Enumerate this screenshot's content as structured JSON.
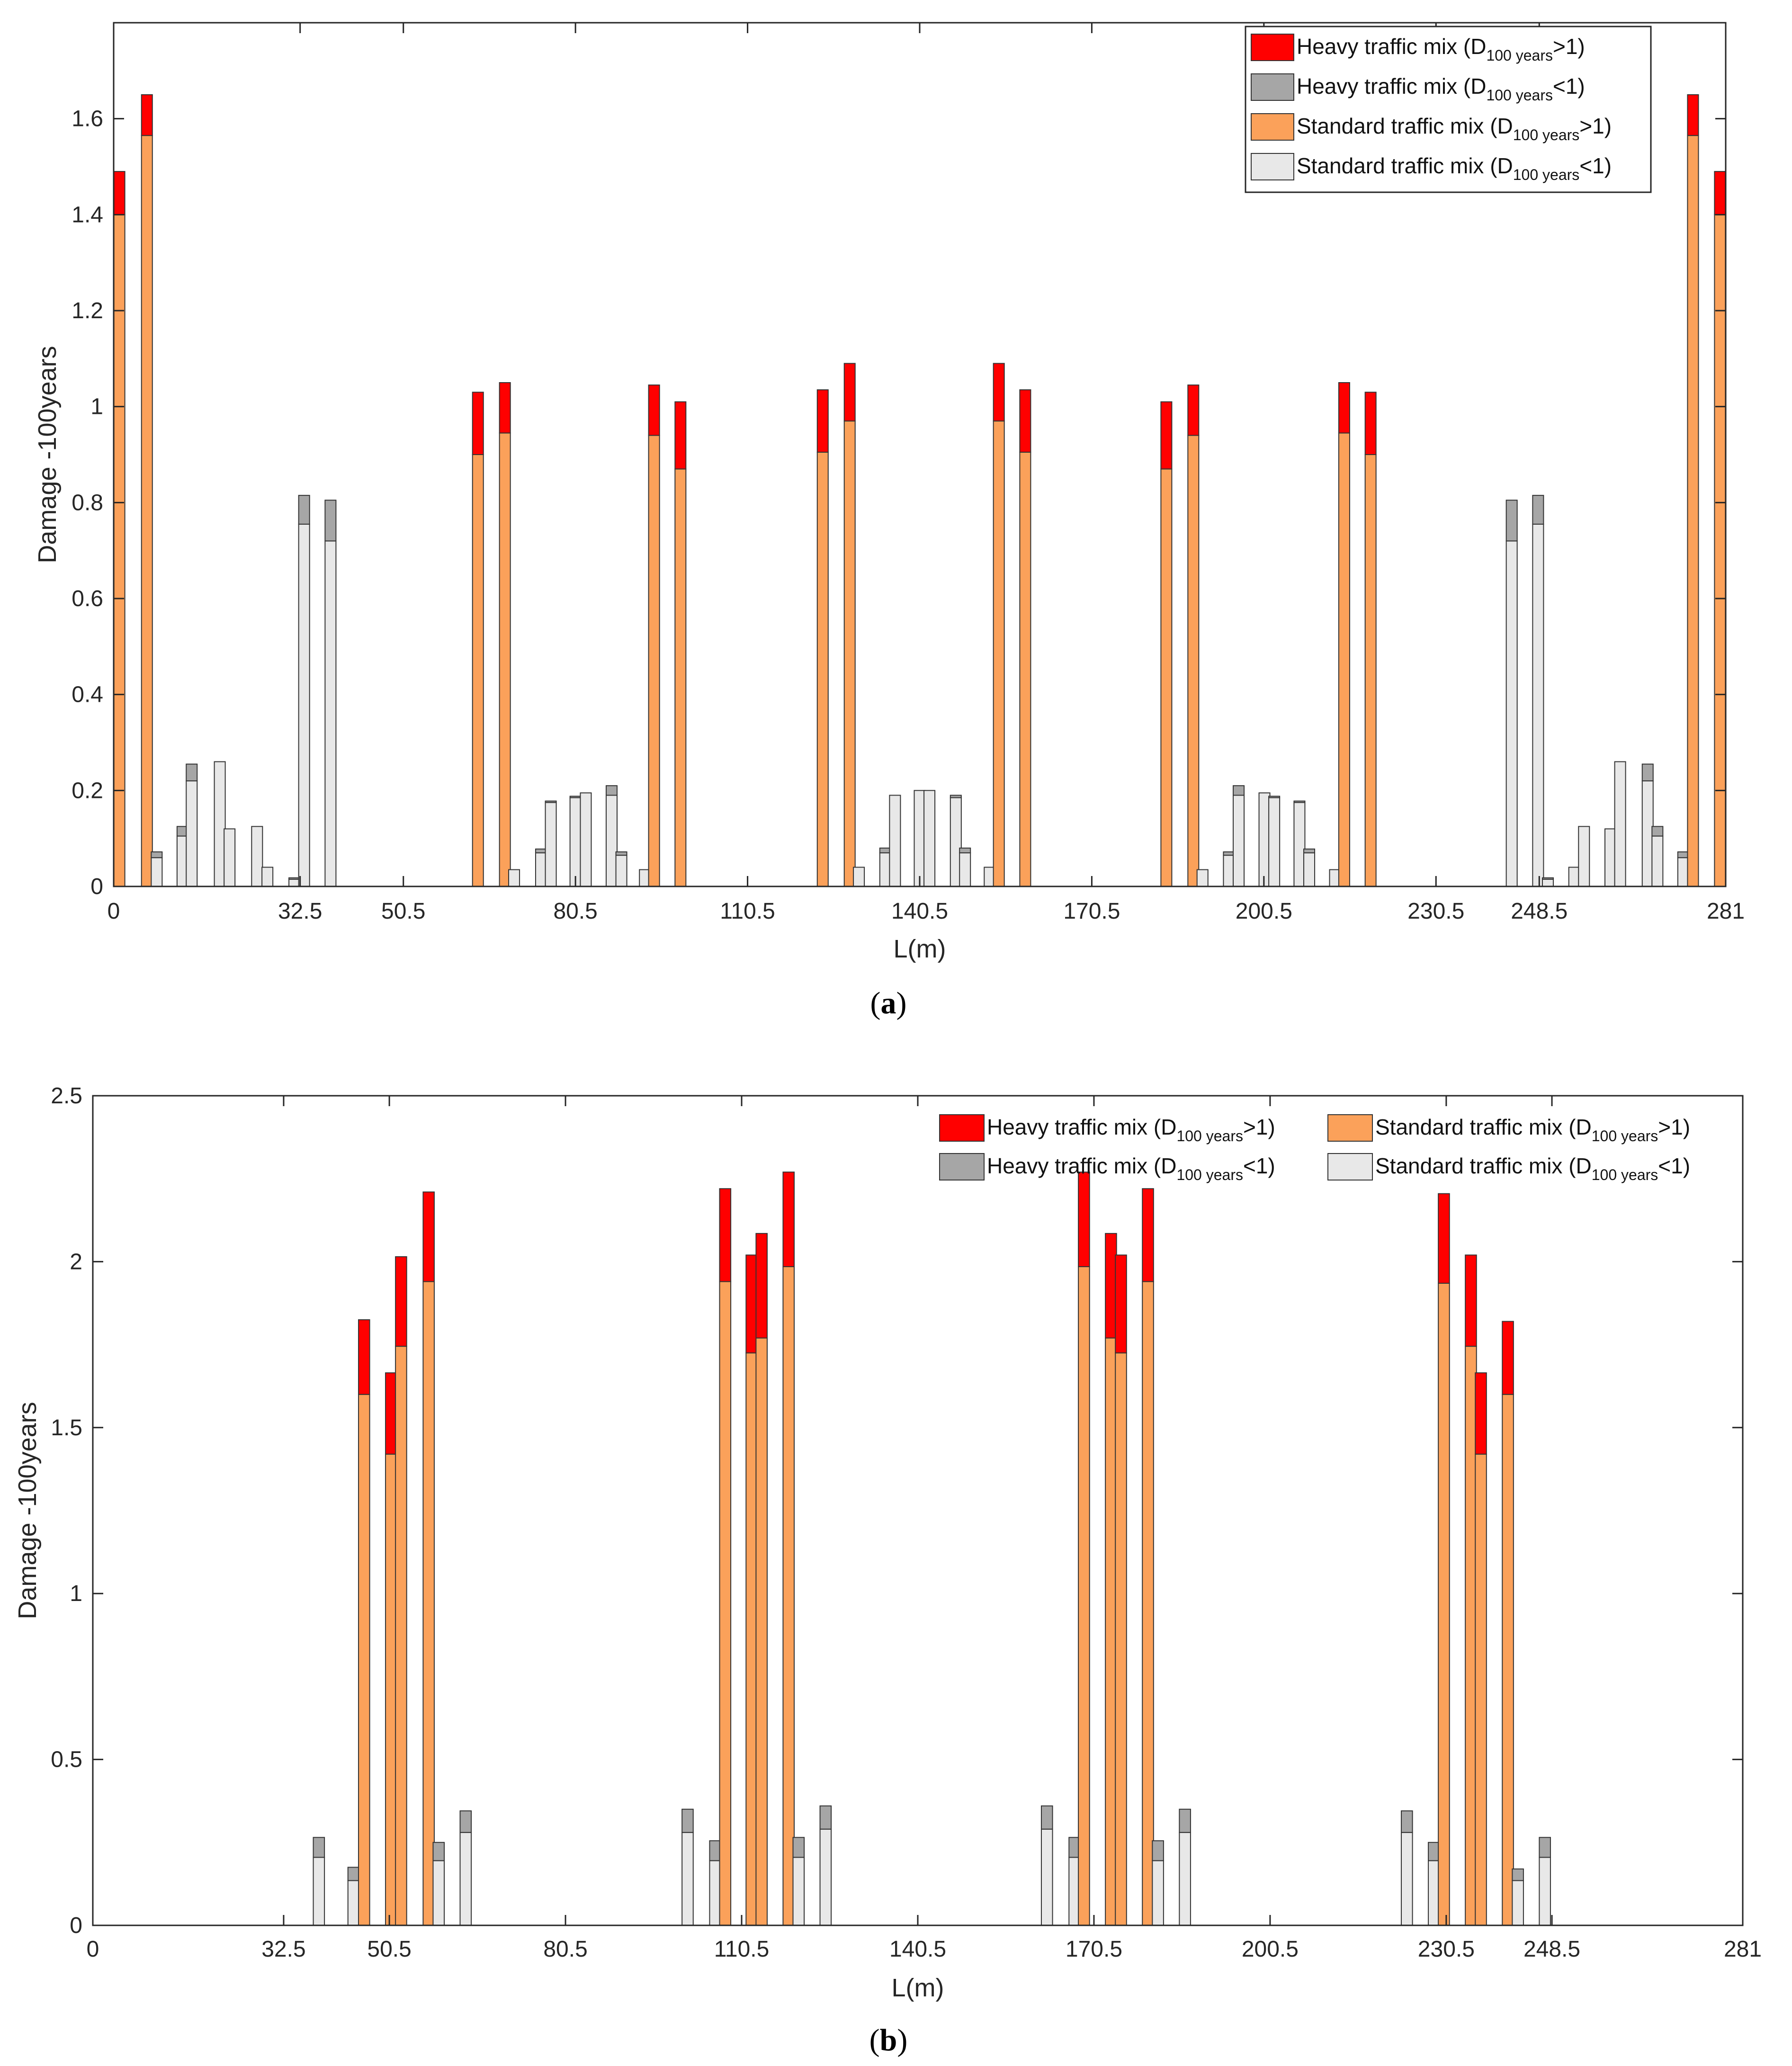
{
  "colors": {
    "heavy_over": "#ff0000",
    "heavy_under": "#a6a6a6",
    "standard_over": "#fba15a",
    "standard_under": "#e8e8e8"
  },
  "legend": {
    "items": [
      {
        "key": "heavy_over",
        "label": "Heavy traffic mix (D",
        "sub": "100 years",
        "tail": ">1)"
      },
      {
        "key": "heavy_under",
        "label": "Heavy traffic mix (D",
        "sub": "100 years",
        "tail": "<1)"
      },
      {
        "key": "standard_over",
        "label": "Standard traffic mix (D",
        "sub": "100 years",
        "tail": ">1)"
      },
      {
        "key": "standard_under",
        "label": "Standard traffic mix (D",
        "sub": "100 years",
        "tail": "<1)"
      }
    ]
  },
  "chart_data": [
    {
      "panel": "(a)",
      "panel_letter": "a",
      "type": "bar",
      "stacked": true,
      "xlabel": "L(m)",
      "ylabel": "Damage -100years",
      "xlim": [
        0,
        281
      ],
      "ylim": [
        0,
        1.8
      ],
      "xticks": [
        "0",
        "32.5",
        "50.5",
        "80.5",
        "110.5",
        "140.5",
        "170.5",
        "200.5",
        "230.5",
        "248.5",
        "281"
      ],
      "xtick_values": [
        0,
        32.5,
        50.5,
        80.5,
        110.5,
        140.5,
        170.5,
        200.5,
        230.5,
        248.5,
        281
      ],
      "yticks": [
        "0",
        "0.2",
        "0.4",
        "0.6",
        "0.8",
        "1",
        "1.2",
        "1.4",
        "1.6"
      ],
      "ytick_values": [
        0,
        0.2,
        0.4,
        0.6,
        0.8,
        1.0,
        1.2,
        1.4,
        1.6
      ],
      "legend_position": "top-right",
      "bar_width": 1.9,
      "bars": [
        {
          "x": 1.0,
          "standard": 1.4,
          "heavy": 1.49
        },
        {
          "x": 5.8,
          "standard": 1.565,
          "heavy": 1.65
        },
        {
          "x": 7.5,
          "standard": 0.06,
          "heavy": 0.072
        },
        {
          "x": 12.0,
          "standard": 0.105,
          "heavy": 0.125
        },
        {
          "x": 13.6,
          "standard": 0.22,
          "heavy": 0.255
        },
        {
          "x": 18.5,
          "standard": 0.26,
          "heavy": 0.26
        },
        {
          "x": 20.2,
          "standard": 0.12,
          "heavy": 0.12
        },
        {
          "x": 25.0,
          "standard": 0.125,
          "heavy": 0.125
        },
        {
          "x": 26.8,
          "standard": 0.04,
          "heavy": 0.04
        },
        {
          "x": 31.5,
          "standard": 0.015,
          "heavy": 0.018
        },
        {
          "x": 33.2,
          "standard": 0.755,
          "heavy": 0.815
        },
        {
          "x": 37.8,
          "standard": 0.72,
          "heavy": 0.805
        },
        {
          "x": 63.5,
          "standard": 0.9,
          "heavy": 1.03
        },
        {
          "x": 68.2,
          "standard": 0.945,
          "heavy": 1.05
        },
        {
          "x": 69.8,
          "standard": 0.035,
          "heavy": 0.035
        },
        {
          "x": 74.5,
          "standard": 0.07,
          "heavy": 0.078
        },
        {
          "x": 76.2,
          "standard": 0.175,
          "heavy": 0.178
        },
        {
          "x": 80.5,
          "standard": 0.185,
          "heavy": 0.188
        },
        {
          "x": 82.3,
          "standard": 0.195,
          "heavy": 0.195
        },
        {
          "x": 86.8,
          "standard": 0.19,
          "heavy": 0.21
        },
        {
          "x": 88.5,
          "standard": 0.065,
          "heavy": 0.072
        },
        {
          "x": 92.6,
          "standard": 0.035,
          "heavy": 0.035
        },
        {
          "x": 94.2,
          "standard": 0.94,
          "heavy": 1.045
        },
        {
          "x": 98.8,
          "standard": 0.87,
          "heavy": 1.01
        },
        {
          "x": 123.6,
          "standard": 0.905,
          "heavy": 1.035
        },
        {
          "x": 128.3,
          "standard": 0.97,
          "heavy": 1.09
        },
        {
          "x": 129.9,
          "standard": 0.04,
          "heavy": 0.04
        },
        {
          "x": 134.5,
          "standard": 0.07,
          "heavy": 0.08
        },
        {
          "x": 136.2,
          "standard": 0.19,
          "heavy": 0.19
        },
        {
          "x": 140.5,
          "standard": 0.2,
          "heavy": 0.2
        },
        {
          "x": 142.2,
          "standard": 0.2,
          "heavy": 0.2
        },
        {
          "x": 146.8,
          "standard": 0.185,
          "heavy": 0.19
        },
        {
          "x": 148.4,
          "standard": 0.07,
          "heavy": 0.08
        },
        {
          "x": 152.7,
          "standard": 0.04,
          "heavy": 0.04
        },
        {
          "x": 154.3,
          "standard": 0.97,
          "heavy": 1.09
        },
        {
          "x": 158.9,
          "standard": 0.905,
          "heavy": 1.035
        },
        {
          "x": 183.5,
          "standard": 0.87,
          "heavy": 1.01
        },
        {
          "x": 188.2,
          "standard": 0.94,
          "heavy": 1.045
        },
        {
          "x": 189.8,
          "standard": 0.035,
          "heavy": 0.035
        },
        {
          "x": 194.4,
          "standard": 0.065,
          "heavy": 0.072
        },
        {
          "x": 196.1,
          "standard": 0.19,
          "heavy": 0.21
        },
        {
          "x": 200.6,
          "standard": 0.195,
          "heavy": 0.195
        },
        {
          "x": 202.3,
          "standard": 0.185,
          "heavy": 0.188
        },
        {
          "x": 206.7,
          "standard": 0.175,
          "heavy": 0.178
        },
        {
          "x": 208.4,
          "standard": 0.07,
          "heavy": 0.078
        },
        {
          "x": 212.9,
          "standard": 0.035,
          "heavy": 0.035
        },
        {
          "x": 214.5,
          "standard": 0.945,
          "heavy": 1.05
        },
        {
          "x": 219.1,
          "standard": 0.9,
          "heavy": 1.03
        },
        {
          "x": 243.7,
          "standard": 0.72,
          "heavy": 0.805
        },
        {
          "x": 248.3,
          "standard": 0.755,
          "heavy": 0.815
        },
        {
          "x": 250.0,
          "standard": 0.015,
          "heavy": 0.018
        },
        {
          "x": 254.6,
          "standard": 0.04,
          "heavy": 0.04
        },
        {
          "x": 256.3,
          "standard": 0.125,
          "heavy": 0.125
        },
        {
          "x": 260.9,
          "standard": 0.12,
          "heavy": 0.12
        },
        {
          "x": 262.6,
          "standard": 0.26,
          "heavy": 0.26
        },
        {
          "x": 267.4,
          "standard": 0.22,
          "heavy": 0.255
        },
        {
          "x": 269.1,
          "standard": 0.105,
          "heavy": 0.125
        },
        {
          "x": 273.6,
          "standard": 0.06,
          "heavy": 0.072
        },
        {
          "x": 275.3,
          "standard": 1.565,
          "heavy": 1.65
        },
        {
          "x": 280.0,
          "standard": 1.4,
          "heavy": 1.49
        }
      ]
    },
    {
      "panel": "(b)",
      "panel_letter": "b",
      "type": "bar",
      "stacked": true,
      "xlabel": "L(m)",
      "ylabel": "Damage -100years",
      "xlim": [
        0,
        281
      ],
      "ylim": [
        0,
        2.5
      ],
      "xticks": [
        "0",
        "32.5",
        "50.5",
        "80.5",
        "110.5",
        "140.5",
        "170.5",
        "200.5",
        "230.5",
        "248.5",
        "281"
      ],
      "xtick_values": [
        0,
        32.5,
        50.5,
        80.5,
        110.5,
        140.5,
        170.5,
        200.5,
        230.5,
        248.5,
        281
      ],
      "yticks": [
        "0",
        "0.5",
        "1",
        "1.5",
        "2",
        "2.5"
      ],
      "ytick_values": [
        0,
        0.5,
        1.0,
        1.5,
        2.0,
        2.5
      ],
      "legend_position": "top-right",
      "bar_width": 1.9,
      "bars": [
        {
          "x": 38.5,
          "standard": 0.205,
          "heavy": 0.265
        },
        {
          "x": 44.4,
          "standard": 0.135,
          "heavy": 0.175
        },
        {
          "x": 46.2,
          "standard": 1.6,
          "heavy": 1.825
        },
        {
          "x": 50.8,
          "standard": 1.42,
          "heavy": 1.665
        },
        {
          "x": 52.5,
          "standard": 1.745,
          "heavy": 2.015
        },
        {
          "x": 57.2,
          "standard": 1.94,
          "heavy": 2.21
        },
        {
          "x": 58.9,
          "standard": 0.195,
          "heavy": 0.25
        },
        {
          "x": 63.5,
          "standard": 0.28,
          "heavy": 0.345
        },
        {
          "x": 101.3,
          "standard": 0.28,
          "heavy": 0.35
        },
        {
          "x": 106.0,
          "standard": 0.195,
          "heavy": 0.255
        },
        {
          "x": 107.7,
          "standard": 1.94,
          "heavy": 2.22
        },
        {
          "x": 112.2,
          "standard": 1.725,
          "heavy": 2.02
        },
        {
          "x": 113.9,
          "standard": 1.77,
          "heavy": 2.085
        },
        {
          "x": 118.5,
          "standard": 1.985,
          "heavy": 2.27
        },
        {
          "x": 120.2,
          "standard": 0.205,
          "heavy": 0.265
        },
        {
          "x": 124.8,
          "standard": 0.29,
          "heavy": 0.36
        },
        {
          "x": 162.5,
          "standard": 0.29,
          "heavy": 0.36
        },
        {
          "x": 167.2,
          "standard": 0.205,
          "heavy": 0.265
        },
        {
          "x": 168.8,
          "standard": 1.985,
          "heavy": 2.27
        },
        {
          "x": 173.4,
          "standard": 1.77,
          "heavy": 2.085
        },
        {
          "x": 175.1,
          "standard": 1.725,
          "heavy": 2.02
        },
        {
          "x": 179.7,
          "standard": 1.94,
          "heavy": 2.22
        },
        {
          "x": 181.4,
          "standard": 0.195,
          "heavy": 0.255
        },
        {
          "x": 186.0,
          "standard": 0.28,
          "heavy": 0.35
        },
        {
          "x": 223.8,
          "standard": 0.28,
          "heavy": 0.345
        },
        {
          "x": 228.4,
          "standard": 0.195,
          "heavy": 0.25
        },
        {
          "x": 230.1,
          "standard": 1.935,
          "heavy": 2.205
        },
        {
          "x": 234.7,
          "standard": 1.745,
          "heavy": 2.02
        },
        {
          "x": 236.4,
          "standard": 1.42,
          "heavy": 1.665
        },
        {
          "x": 241.0,
          "standard": 1.6,
          "heavy": 1.82
        },
        {
          "x": 242.7,
          "standard": 0.135,
          "heavy": 0.17
        },
        {
          "x": 247.3,
          "standard": 0.205,
          "heavy": 0.265
        }
      ]
    }
  ]
}
